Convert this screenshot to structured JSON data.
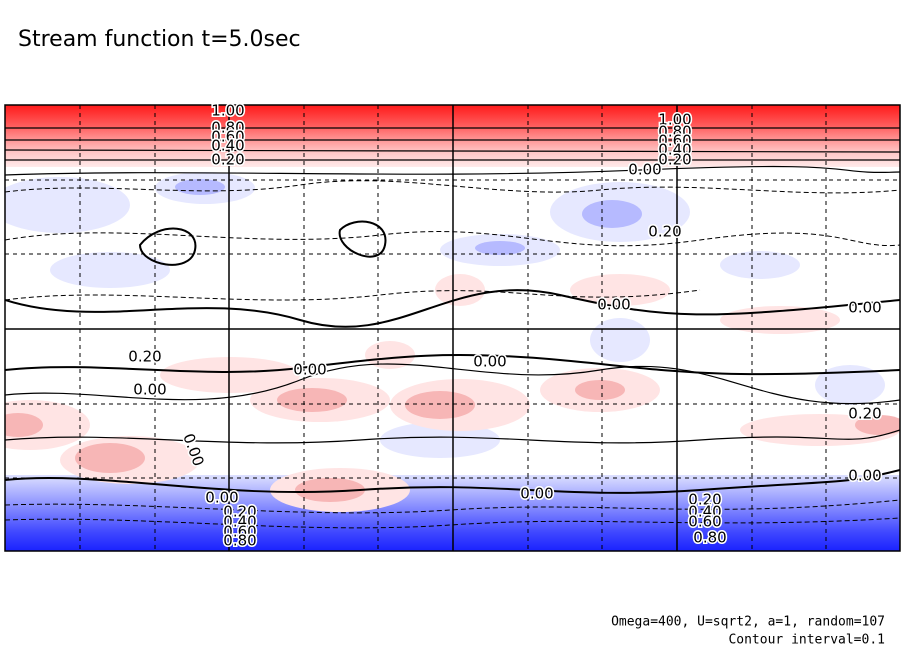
{
  "chart_data": {
    "type": "contour",
    "title": "Stream function t=5.0sec",
    "annotations": [
      "Omega=400, U=sqrt2, a=1, random=107",
      "Contour interval=0.1"
    ],
    "contour_labels": [
      "1.00",
      "0.80",
      "0.60",
      "0.40",
      "0.20",
      "1.00",
      "0.80",
      "0.60",
      "0.40",
      "0.20",
      "0.00",
      "0.20",
      "0.00",
      "0.00",
      "0.20",
      "0.00",
      "0.00",
      "0.00",
      "0.20",
      "0.00",
      "0.00",
      "0.20",
      "0.40",
      "0.60",
      "0.80",
      "0.00",
      "0.20",
      "0.40",
      "0.60",
      "0.80",
      "0.00"
    ]
  }
}
